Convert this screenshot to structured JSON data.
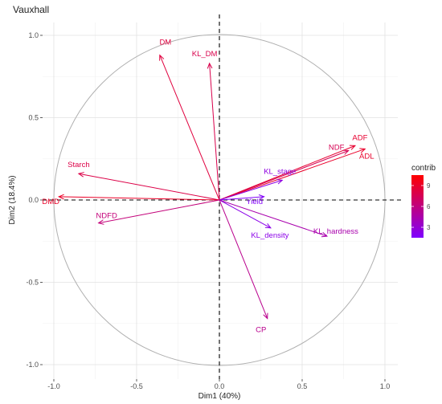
{
  "chart_data": {
    "type": "scatter",
    "subtype": "pca-variable-correlation-circle",
    "title": "Vauxhall",
    "xlabel": "Dim1 (40%)",
    "ylabel": "Dim2 (18.4%)",
    "xlim": [
      -1.0,
      1.0
    ],
    "ylim": [
      -1.0,
      1.0
    ],
    "xticks": [
      "-1.0",
      "-0.5",
      "0.0",
      "0.5",
      "1.0"
    ],
    "yticks": [
      "-1.0",
      "-0.5",
      "0.0",
      "0.5",
      "1.0"
    ],
    "grid": true,
    "legend": {
      "title": "contrib",
      "placement": "right",
      "ticks": [
        "9",
        "6",
        "3"
      ],
      "range": [
        1.5,
        10.5
      ],
      "colors": [
        "#7f00ff",
        "#c0007f",
        "#ff0000"
      ]
    },
    "variables": [
      {
        "name": "DM",
        "x": -0.36,
        "y": 0.88,
        "contrib": 8.3
      },
      {
        "name": "KL_DM",
        "x": -0.06,
        "y": 0.83,
        "contrib": 7.8
      },
      {
        "name": "ADF",
        "x": 0.82,
        "y": 0.33,
        "contrib": 8.8
      },
      {
        "name": "NDF",
        "x": 0.78,
        "y": 0.3,
        "contrib": 7.6
      },
      {
        "name": "ADL",
        "x": 0.88,
        "y": 0.31,
        "contrib": 9.0
      },
      {
        "name": "Starch",
        "x": -0.85,
        "y": 0.16,
        "contrib": 8.0
      },
      {
        "name": "DMD",
        "x": -0.97,
        "y": 0.02,
        "contrib": 9.1
      },
      {
        "name": "NDFD",
        "x": -0.73,
        "y": -0.14,
        "contrib": 6.2
      },
      {
        "name": "KL_stage",
        "x": 0.38,
        "y": 0.12,
        "contrib": 2.6
      },
      {
        "name": "Yield",
        "x": 0.27,
        "y": 0.02,
        "contrib": 1.7
      },
      {
        "name": "KL_density",
        "x": 0.31,
        "y": -0.17,
        "contrib": 2.3
      },
      {
        "name": "KL_hardness",
        "x": 0.65,
        "y": -0.22,
        "contrib": 4.4
      },
      {
        "name": "CP",
        "x": 0.29,
        "y": -0.72,
        "contrib": 5.5
      }
    ]
  }
}
